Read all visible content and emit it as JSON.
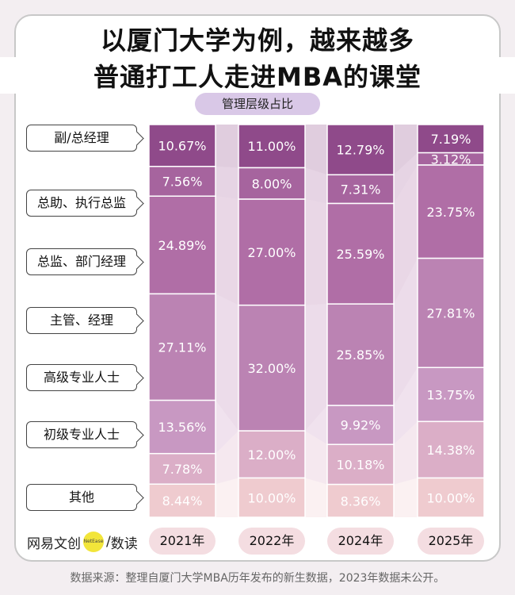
{
  "title_line1": "以厦门大学为例，越来越多",
  "title_line2": "普通打工人走进MBA的课堂",
  "subtitle": "管理层级占比",
  "logo": {
    "brand": "网易文创",
    "badge": "NetEase",
    "section": "数读"
  },
  "source": "数据来源：整理自厦门大学MBA历年发布的新生数据，2023年数据未公开。",
  "colors": [
    "#8f4a8a",
    "#a6649e",
    "#b06ea6",
    "#bb83b3",
    "#c898c2",
    "#dbaec7",
    "#efcbcf"
  ],
  "chart_data": {
    "type": "bar",
    "stacked": true,
    "normalized": true,
    "title": "管理层级占比",
    "categories": [
      "2021年",
      "2022年",
      "2024年",
      "2025年"
    ],
    "series": [
      {
        "name": "副/总经理",
        "values": [
          10.67,
          11.0,
          12.79,
          7.19
        ],
        "labels": [
          "10.67%",
          "11.00%",
          "12.79%",
          "7.19%"
        ]
      },
      {
        "name": "总助、执行总监",
        "values": [
          7.56,
          8.0,
          7.31,
          3.12
        ],
        "labels": [
          "7.56%",
          "8.00%",
          "7.31%",
          "3.12%"
        ]
      },
      {
        "name": "总监、部门经理",
        "values": [
          24.89,
          27.0,
          25.59,
          23.75
        ],
        "labels": [
          "24.89%",
          "27.00%",
          "25.59%",
          "23.75%"
        ]
      },
      {
        "name": "主管、经理",
        "values": [
          27.11,
          32.0,
          25.85,
          27.81
        ],
        "labels": [
          "27.11%",
          "32.00%",
          "25.85%",
          "27.81%"
        ]
      },
      {
        "name": "高级专业人士",
        "values": [
          13.56,
          0,
          9.92,
          13.75
        ],
        "labels": [
          "13.56%",
          "",
          "9.92%",
          "13.75%"
        ]
      },
      {
        "name": "初级专业人士",
        "values": [
          7.78,
          12.0,
          10.18,
          14.38
        ],
        "labels": [
          "7.78%",
          "12.00%",
          "10.18%",
          "14.38%"
        ]
      },
      {
        "name": "其他",
        "values": [
          8.44,
          10.0,
          8.36,
          10.0
        ],
        "labels": [
          "8.44%",
          "10.00%",
          "8.36%",
          "10.00%"
        ]
      }
    ]
  }
}
